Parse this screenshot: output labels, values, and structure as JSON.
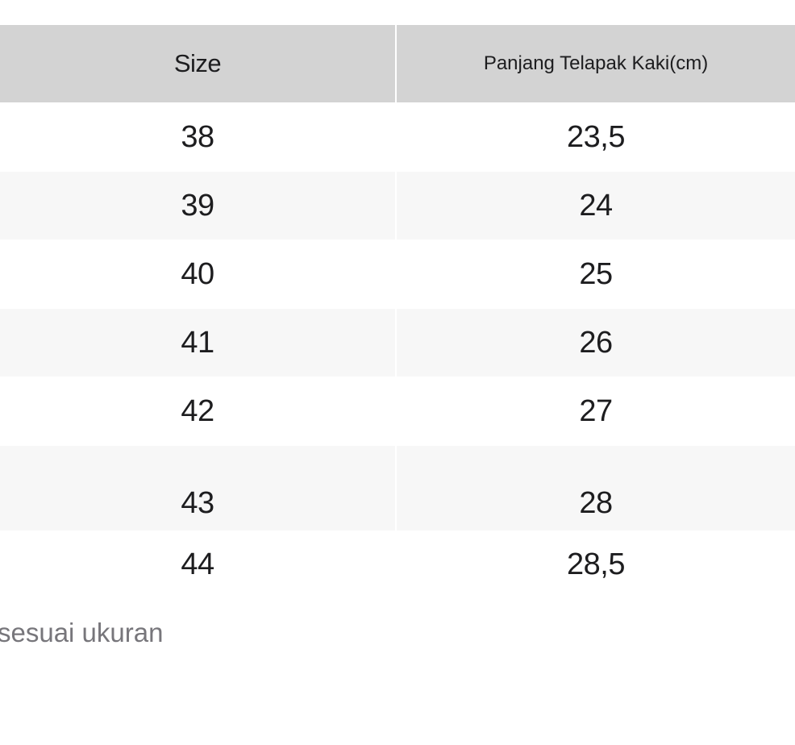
{
  "table": {
    "header": {
      "size_label": "Size",
      "length_label": "Panjang Telapak Kaki(cm)"
    },
    "rows": [
      {
        "size": "38",
        "length": "23,5"
      },
      {
        "size": "39",
        "length": "24"
      },
      {
        "size": "40",
        "length": "25"
      },
      {
        "size": "41",
        "length": "26"
      },
      {
        "size": "42",
        "length": "27"
      },
      {
        "size": "43",
        "length": "28"
      },
      {
        "size": "44",
        "length": "28,5"
      }
    ]
  },
  "note": {
    "text": "sesuai ukuran"
  },
  "colors": {
    "header_bg": "#d3d3d3",
    "stripe_bg": "#f7f7f7",
    "row_bg": "#ffffff",
    "text": "#1d1d1f",
    "note_text": "#77767b",
    "divider": "#ffffff"
  }
}
